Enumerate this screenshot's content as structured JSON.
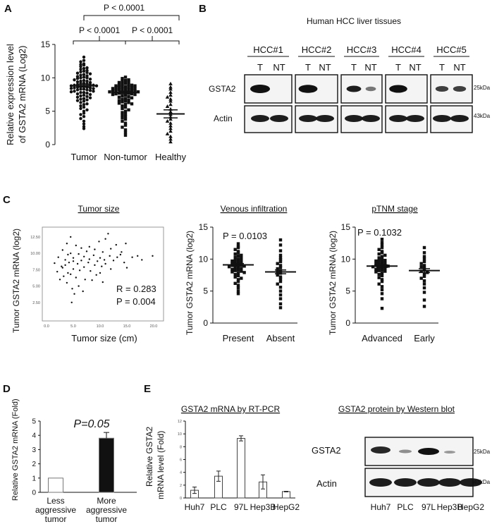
{
  "panels": {
    "A": {
      "label": "A"
    },
    "B": {
      "label": "B",
      "title": "Human HCC liver tissues"
    },
    "C": {
      "label": "C"
    },
    "D": {
      "label": "D"
    },
    "E": {
      "label": "E"
    }
  },
  "sigA": [
    "P < 0.0001",
    "P < 0.0001",
    "P < 0.0001"
  ],
  "western_B": {
    "samples": [
      "HCC#1",
      "HCC#2",
      "HCC#3",
      "HCC#4",
      "HCC#5"
    ],
    "lanes": [
      "T",
      "NT"
    ],
    "rows": [
      "GSTA2",
      "Actin"
    ],
    "kda": [
      "25kDa",
      "43kDa"
    ]
  },
  "western_E": {
    "title": "GSTA2 protein by Western blot",
    "rows": [
      "GSTA2",
      "Actin"
    ],
    "lanes": [
      "Huh7",
      "PLC",
      "97L",
      "Hep3B",
      "HepG2"
    ],
    "kda": [
      "25kDa",
      "43kDa"
    ]
  },
  "chart_data": [
    {
      "id": "A",
      "type": "scatter",
      "categories": [
        "Tumor",
        "Non-tumor",
        "Healthy"
      ],
      "ylabel": "Relative expression level of GSTA2 mRNA  (Log2)",
      "ylim": [
        0,
        15
      ],
      "yticks": [
        0,
        5,
        10,
        15
      ],
      "means": [
        8.8,
        7.8,
        4.6
      ],
      "sem": [
        0.2,
        0.2,
        0.6
      ],
      "series": [
        {
          "values": [
            13.1,
            12.6,
            12.4,
            12.1,
            12.0,
            11.9,
            11.7,
            11.5,
            11.4,
            11.3,
            11.1,
            11.0,
            10.9,
            10.8,
            10.7,
            10.6,
            10.5,
            10.4,
            10.3,
            10.2,
            10.1,
            10.0,
            10.0,
            9.9,
            9.8,
            9.7,
            9.6,
            9.5,
            9.5,
            9.4,
            9.3,
            9.2,
            9.2,
            9.1,
            9.0,
            9.0,
            8.9,
            8.9,
            8.8,
            8.8,
            8.7,
            8.7,
            8.6,
            8.6,
            8.5,
            8.5,
            8.4,
            8.4,
            8.3,
            8.3,
            8.2,
            8.2,
            8.1,
            8.0,
            8.0,
            7.9,
            7.8,
            7.8,
            7.7,
            7.6,
            7.5,
            7.4,
            7.3,
            7.2,
            7.1,
            7.0,
            6.9,
            6.8,
            6.7,
            6.6,
            6.5,
            6.3,
            6.1,
            6.0,
            5.8,
            5.6,
            5.4,
            5.2,
            5.0,
            4.7,
            4.5,
            4.2,
            3.9,
            3.5,
            3.1,
            2.7,
            2.4
          ]
        },
        {
          "values": [
            10.1,
            9.9,
            9.7,
            9.6,
            9.5,
            9.4,
            9.3,
            9.2,
            9.1,
            9.0,
            8.9,
            8.9,
            8.8,
            8.8,
            8.7,
            8.7,
            8.6,
            8.6,
            8.5,
            8.5,
            8.4,
            8.4,
            8.3,
            8.3,
            8.2,
            8.2,
            8.1,
            8.1,
            8.0,
            8.0,
            7.9,
            7.9,
            7.8,
            7.8,
            7.7,
            7.7,
            7.6,
            7.6,
            7.5,
            7.5,
            7.4,
            7.3,
            7.2,
            7.1,
            7.0,
            6.9,
            6.8,
            6.7,
            6.6,
            6.5,
            6.4,
            6.3,
            6.2,
            6.1,
            6.0,
            5.8,
            5.6,
            5.4,
            5.2,
            5.0,
            4.8,
            4.6,
            4.4,
            4.2,
            4.0,
            3.8,
            3.5,
            3.2,
            2.9,
            2.6,
            2.2,
            1.8,
            1.4
          ]
        },
        {
          "values": [
            9.1,
            8.6,
            8.3,
            7.8,
            7.4,
            7.1,
            6.8,
            6.5,
            6.0,
            5.7,
            5.3,
            4.9,
            4.5,
            4.1,
            3.8,
            3.5,
            3.2,
            2.8,
            2.4,
            2.0,
            1.6,
            1.2,
            0.8,
            0.4
          ]
        }
      ]
    },
    {
      "id": "C1",
      "type": "scatter",
      "title": "Tumor size",
      "xlabel": "Tumor size (cm)",
      "ylabel": "Tumor GSTA2 mRNA (log2)",
      "xlim": [
        0,
        20
      ],
      "ylim": [
        0,
        14
      ],
      "xticks": [
        "0.0",
        "5.0",
        "10.0",
        "15.0",
        "20.0"
      ],
      "yticks": [
        "2.50",
        "5.00",
        "7.50",
        "10.00",
        "12.50"
      ],
      "stats": [
        "R = 0.283",
        "P = 0.004"
      ],
      "points": [
        [
          1.5,
          8.5
        ],
        [
          2.0,
          7.2
        ],
        [
          2.2,
          9.4
        ],
        [
          2.5,
          6.0
        ],
        [
          2.8,
          8.0
        ],
        [
          3.0,
          10.5
        ],
        [
          3.0,
          7.8
        ],
        [
          3.2,
          6.5
        ],
        [
          3.5,
          9.0
        ],
        [
          3.5,
          8.2
        ],
        [
          3.8,
          11.5
        ],
        [
          3.8,
          5.5
        ],
        [
          4.0,
          7.0
        ],
        [
          4.0,
          9.8
        ],
        [
          4.2,
          8.6
        ],
        [
          4.5,
          12.5
        ],
        [
          4.5,
          10.0
        ],
        [
          4.5,
          6.8
        ],
        [
          4.7,
          2.5
        ],
        [
          4.8,
          4.6
        ],
        [
          5.0,
          8.8
        ],
        [
          5.0,
          7.6
        ],
        [
          5.0,
          9.3
        ],
        [
          5.2,
          3.8
        ],
        [
          5.5,
          11.2
        ],
        [
          5.5,
          6.3
        ],
        [
          5.8,
          8.4
        ],
        [
          6.0,
          9.9
        ],
        [
          6.0,
          5.0
        ],
        [
          6.2,
          7.4
        ],
        [
          6.5,
          10.8
        ],
        [
          6.5,
          8.9
        ],
        [
          6.8,
          4.2
        ],
        [
          7.0,
          9.5
        ],
        [
          7.0,
          7.9
        ],
        [
          7.2,
          6.0
        ],
        [
          7.5,
          10.3
        ],
        [
          7.8,
          8.6
        ],
        [
          8.0,
          11.0
        ],
        [
          8.0,
          9.1
        ],
        [
          8.2,
          7.3
        ],
        [
          8.5,
          5.9
        ],
        [
          8.8,
          9.7
        ],
        [
          9.0,
          8.2
        ],
        [
          9.0,
          10.6
        ],
        [
          9.3,
          6.7
        ],
        [
          9.5,
          8.8
        ],
        [
          9.8,
          11.8
        ],
        [
          10.0,
          9.3
        ],
        [
          10.0,
          7.0
        ],
        [
          10.3,
          8.0
        ],
        [
          10.5,
          5.6
        ],
        [
          10.5,
          10.2
        ],
        [
          10.8,
          9.0
        ],
        [
          11.0,
          8.4
        ],
        [
          11.0,
          12.2
        ],
        [
          11.5,
          13.0
        ],
        [
          11.8,
          9.6
        ],
        [
          12.0,
          10.7
        ],
        [
          12.0,
          7.6
        ],
        [
          12.5,
          8.9
        ],
        [
          13.0,
          11.3
        ],
        [
          13.2,
          9.4
        ],
        [
          13.8,
          9.8
        ],
        [
          14.0,
          10.2
        ],
        [
          14.5,
          8.6
        ],
        [
          14.8,
          11.5
        ],
        [
          15.0,
          7.8
        ],
        [
          16.0,
          9.4
        ],
        [
          17.0,
          9.6
        ],
        [
          17.8,
          9.0
        ],
        [
          19.8,
          9.6
        ]
      ]
    },
    {
      "id": "C2",
      "type": "scatter",
      "title": "Venous infiltration",
      "categories": [
        "Present",
        "Absent"
      ],
      "ylabel": "Tumor GSTA2 mRNA (log2)",
      "ylim": [
        0,
        15
      ],
      "yticks": [
        0,
        5,
        10,
        15
      ],
      "stats": [
        "P = 0.0103"
      ],
      "means": [
        9.1,
        8.0
      ],
      "sem": [
        0.2,
        0.3
      ],
      "series": [
        {
          "values": [
            12.4,
            12.0,
            11.8,
            11.5,
            11.2,
            11.0,
            10.8,
            10.6,
            10.5,
            10.3,
            10.2,
            10.0,
            9.9,
            9.8,
            9.7,
            9.6,
            9.5,
            9.4,
            9.3,
            9.2,
            9.1,
            9.0,
            9.0,
            8.9,
            8.8,
            8.7,
            8.6,
            8.5,
            8.4,
            8.3,
            8.2,
            8.1,
            8.0,
            7.9,
            7.8,
            7.6,
            7.4,
            7.2,
            7.0,
            6.8,
            6.5,
            6.2,
            5.9,
            5.5,
            5.0,
            4.6
          ]
        },
        {
          "values": [
            13.0,
            12.2,
            11.3,
            10.6,
            10.2,
            9.9,
            9.6,
            9.3,
            9.0,
            8.7,
            8.5,
            8.2,
            8.0,
            7.8,
            7.5,
            7.2,
            6.9,
            6.5,
            6.1,
            5.6,
            5.0,
            4.4,
            3.8,
            3.0,
            2.4
          ]
        }
      ]
    },
    {
      "id": "C3",
      "type": "scatter",
      "title": "pTNM stage",
      "categories": [
        "Advanced",
        "Early"
      ],
      "ylabel": "Tumor GSTA2 mRNA (log2)",
      "ylim": [
        0,
        15
      ],
      "yticks": [
        0,
        5,
        10,
        15
      ],
      "stats": [
        "P = 0.1032"
      ],
      "means": [
        8.9,
        8.2
      ],
      "sem": [
        0.2,
        0.3
      ],
      "series": [
        {
          "values": [
            13.1,
            12.6,
            12.2,
            11.8,
            11.5,
            11.2,
            11.0,
            10.8,
            10.6,
            10.4,
            10.2,
            10.0,
            9.9,
            9.8,
            9.7,
            9.6,
            9.5,
            9.4,
            9.3,
            9.2,
            9.1,
            9.0,
            9.0,
            8.9,
            8.8,
            8.7,
            8.6,
            8.5,
            8.4,
            8.3,
            8.2,
            8.1,
            8.0,
            7.8,
            7.6,
            7.4,
            7.1,
            6.8,
            6.5,
            6.1,
            5.7,
            5.2,
            4.6,
            3.8,
            2.3
          ]
        },
        {
          "values": [
            11.8,
            11.0,
            10.4,
            10.0,
            9.6,
            9.3,
            9.0,
            8.8,
            8.6,
            8.3,
            8.1,
            7.9,
            7.6,
            7.3,
            7.0,
            6.6,
            6.1,
            5.5,
            4.8,
            3.6,
            2.6
          ]
        }
      ]
    },
    {
      "id": "D",
      "type": "bar",
      "categories": [
        [
          "Less",
          "aggressive",
          "tumor"
        ],
        [
          "More",
          "aggressive",
          "tumor"
        ]
      ],
      "values": [
        1.0,
        3.8
      ],
      "errors": [
        0,
        0.4
      ],
      "colors": [
        "#ffffff",
        "#111111"
      ],
      "ylabel": "Relative GSTA2 mRNA (Fold)",
      "ylim": [
        0,
        5
      ],
      "yticks": [
        0,
        1,
        2,
        3,
        4,
        5
      ],
      "annotation": "P=0.05"
    },
    {
      "id": "E",
      "type": "bar",
      "title": "GSTA2 mRNA by RT-PCR",
      "categories": [
        "Huh7",
        "PLC",
        "97L",
        "Hep3B",
        "HepG2"
      ],
      "values": [
        1.2,
        3.4,
        9.3,
        2.5,
        1.0
      ],
      "errors": [
        0.5,
        0.8,
        0.4,
        1.1,
        0.05
      ],
      "ylabel": "Relative GSTA2 mRNA  level (Fold)",
      "ylim": [
        0,
        12
      ],
      "yticks": [
        0,
        2,
        4,
        6,
        8,
        10,
        12
      ]
    }
  ]
}
